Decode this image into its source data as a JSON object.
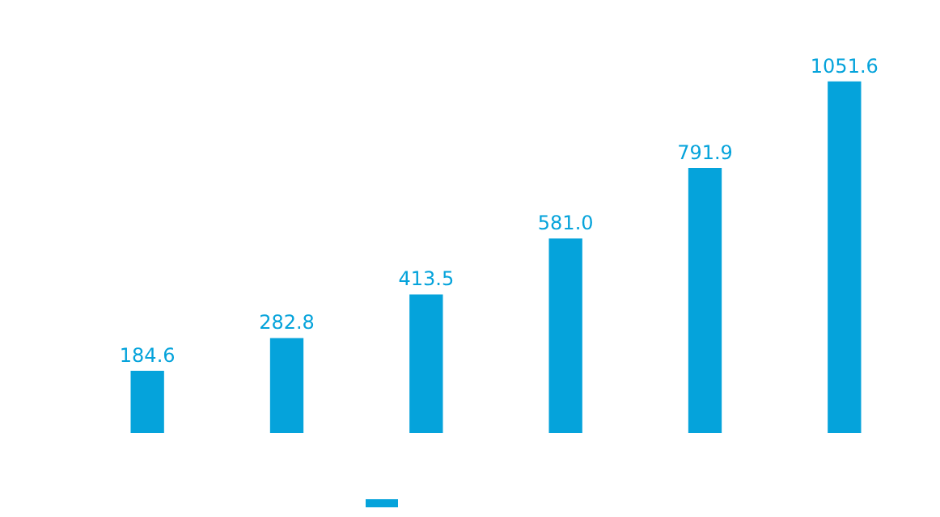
{
  "chart_data": {
    "type": "bar",
    "categories": [
      null,
      null,
      null,
      null,
      null,
      null
    ],
    "series": [
      {
        "color": "#05a3db",
        "values": [
          184.6,
          282.8,
          413.5,
          581.0,
          791.9,
          1051.6
        ],
        "value_labels": [
          "184.6",
          "282.8",
          "413.5",
          "581.0",
          "791.9",
          "1051.6"
        ]
      }
    ],
    "grid": false,
    "tick_labels": false
  }
}
